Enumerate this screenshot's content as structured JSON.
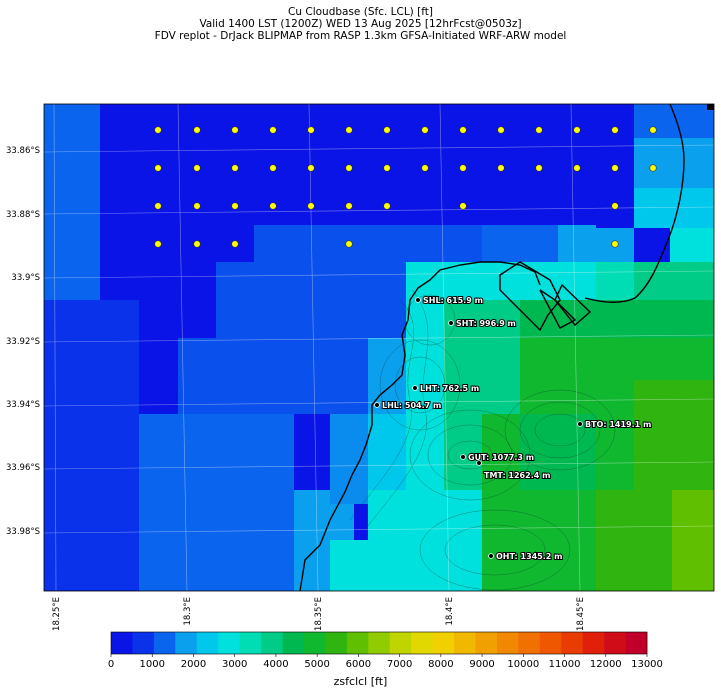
{
  "title": {
    "line1": "Cu Cloudbase (Sfc. LCL) [ft]",
    "line2": "Valid 1400 LST (1200Z) WED 13 Aug 2025 [12hrFcst@0503z]",
    "line3": "FDV replot - DrJack BLIPMAP from RASP 1.3km GFSA-Initiated WRF-ARW model"
  },
  "axes": {
    "lat_ticks": [
      {
        "value": -33.86,
        "label": "33.86°S"
      },
      {
        "value": -33.88,
        "label": "33.88°S"
      },
      {
        "value": -33.9,
        "label": "33.9°S"
      },
      {
        "value": -33.92,
        "label": "33.92°S"
      },
      {
        "value": -33.94,
        "label": "33.94°S"
      },
      {
        "value": -33.96,
        "label": "33.96°S"
      },
      {
        "value": -33.98,
        "label": "33.98°S"
      }
    ],
    "lon_ticks": [
      {
        "value": 18.25,
        "label": "18.25°E"
      },
      {
        "value": 18.3,
        "label": "18.3°E"
      },
      {
        "value": 18.35,
        "label": "18.35°E"
      },
      {
        "value": 18.4,
        "label": "18.4°E"
      },
      {
        "value": 18.45,
        "label": "18.45°E"
      }
    ]
  },
  "colorbar": {
    "label": "zsfclcl [ft]",
    "ticks": [
      "0",
      "1000",
      "2000",
      "3000",
      "4000",
      "5000",
      "6000",
      "7000",
      "8000",
      "9000",
      "10000",
      "11000",
      "12000",
      "13000"
    ],
    "colors": [
      "#0a14e6",
      "#0a32ea",
      "#0a64ee",
      "#0aa0ee",
      "#00c8ec",
      "#00e0dc",
      "#00dcb4",
      "#00cc88",
      "#00b850",
      "#10b830",
      "#30b410",
      "#60c000",
      "#90cc00",
      "#c0d400",
      "#e0d800",
      "#f0d000",
      "#f0b800",
      "#f0a000",
      "#f08800",
      "#f07000",
      "#f05800",
      "#e83c00",
      "#e02008",
      "#d00c18",
      "#c00028"
    ]
  },
  "sites": [
    {
      "id": "SHL",
      "label": "SHL: 615.9 m"
    },
    {
      "id": "SHT",
      "label": "SHT: 996.9 m"
    },
    {
      "id": "LHT",
      "label": "LHT: 762.5 m"
    },
    {
      "id": "LHL",
      "label": "LHL: 504.7 m"
    },
    {
      "id": "GUT",
      "label": "GUT: 1077.3 m"
    },
    {
      "id": "TMT",
      "label": "TMT: 1262.4 m"
    },
    {
      "id": "BTO",
      "label": "BTO: 1419.1 m"
    },
    {
      "id": "OHT",
      "label": "OHT: 1345.2 m"
    }
  ],
  "colors": {
    "ocean_deep": "#0a14e6",
    "ocean_mid": "#0a64ee",
    "land_green": "#10b830",
    "marker_yellow": "#ffff00"
  }
}
